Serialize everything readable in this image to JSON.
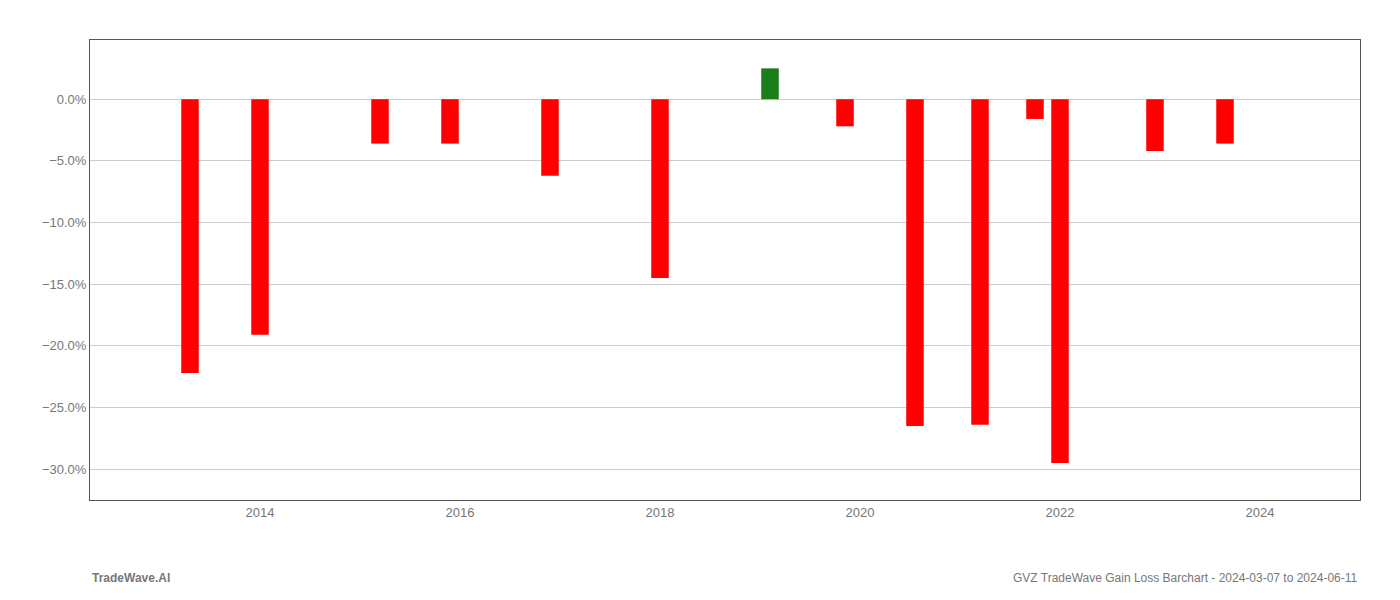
{
  "chart_data": {
    "type": "bar",
    "x": [
      2013.3,
      2014.0,
      2015.2,
      2015.9,
      2016.9,
      2018.0,
      2019.1,
      2019.85,
      2020.55,
      2021.2,
      2021.75,
      2022.0,
      2022.95,
      2023.65
    ],
    "values": [
      -0.222,
      -0.191,
      -0.036,
      -0.036,
      -0.062,
      -0.145,
      0.025,
      -0.022,
      -0.265,
      -0.264,
      -0.016,
      -0.295,
      -0.042,
      -0.036
    ],
    "colors": [
      "#ff0000",
      "#ff0000",
      "#ff0000",
      "#ff0000",
      "#ff0000",
      "#ff0000",
      "#1a7d1a",
      "#ff0000",
      "#ff0000",
      "#ff0000",
      "#ff0000",
      "#ff0000",
      "#ff0000",
      "#ff0000"
    ],
    "xlim": [
      2012.3,
      2025.0
    ],
    "xticks": [
      2014,
      2016,
      2018,
      2020,
      2022,
      2024
    ],
    "ylim": [
      -0.325,
      0.048
    ],
    "yticks": [
      {
        "value": 0.0,
        "label": "0.0%"
      },
      {
        "value": -0.05,
        "label": "−5.0%"
      },
      {
        "value": -0.1,
        "label": "−10.0%"
      },
      {
        "value": -0.15,
        "label": "−15.0%"
      },
      {
        "value": -0.2,
        "label": "−20.0%"
      },
      {
        "value": -0.25,
        "label": "−25.0%"
      },
      {
        "value": -0.3,
        "label": "−30.0%"
      }
    ],
    "grid": true,
    "annotations": [
      "TradeWave.AI",
      "GVZ TradeWave Gain Loss Barchart - 2024-03-07 to 2024-06-11"
    ]
  }
}
